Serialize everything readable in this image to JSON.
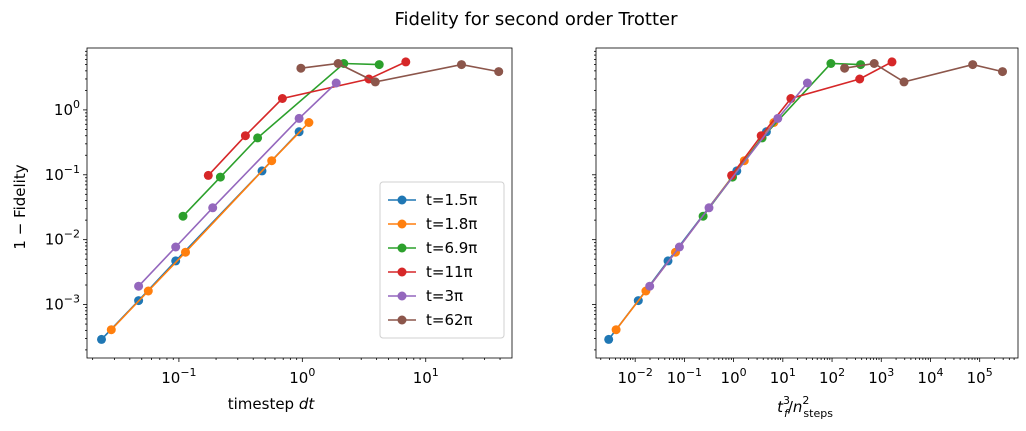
{
  "chart_data": {
    "title": "Fidelity for second order Trotter",
    "colors": [
      "#1f77b4",
      "#ff7f0e",
      "#2ca02c",
      "#d62728",
      "#9467bd",
      "#8c564b"
    ],
    "legend": [
      "t=1.5π",
      "t=1.8π",
      "t=6.9π",
      "t=11π",
      "t=3π",
      "t=62π"
    ],
    "shared_ylabel": "1 − Fidelity",
    "ylim": [
      0.00015,
      9
    ],
    "y_ticks": [
      {
        "value": 0.001,
        "label": "10",
        "exp": "−3"
      },
      {
        "value": 0.01,
        "label": "10",
        "exp": "−2"
      },
      {
        "value": 0.1,
        "label": "10",
        "exp": "−1"
      },
      {
        "value": 1,
        "label": "10",
        "exp": "0"
      }
    ],
    "panels": [
      {
        "type": "line",
        "scale": "log-log",
        "xlabel_main": "timestep ",
        "xlabel_italic": "dt",
        "xlim": [
          0.018,
          50
        ],
        "x_ticks": [
          {
            "value": 0.1,
            "label": "10",
            "exp": "−1"
          },
          {
            "value": 1,
            "label": "10",
            "exp": "0"
          },
          {
            "value": 10,
            "label": "10",
            "exp": "1"
          }
        ],
        "legend_position": "lower-right",
        "series": [
          {
            "name": "t=1.5π",
            "x": [
              0.0236,
              0.0471,
              0.0942,
              0.471,
              0.942
            ],
            "y": [
              0.00029,
              0.00115,
              0.0047,
              0.115,
              0.46
            ]
          },
          {
            "name": "t=1.8π",
            "x": [
              0.0283,
              0.0565,
              0.113,
              0.565,
              1.13
            ],
            "y": [
              0.00041,
              0.00162,
              0.0064,
              0.165,
              0.64
            ]
          },
          {
            "name": "t=6.9π",
            "x": [
              0.108,
              0.217,
              0.434,
              2.17,
              4.2
            ],
            "y": [
              0.023,
              0.092,
              0.37,
              5.2,
              5.0
            ]
          },
          {
            "name": "t=11π",
            "x": [
              0.173,
              0.346,
              0.69,
              3.46,
              6.9
            ],
            "y": [
              0.098,
              0.4,
              1.5,
              3.0,
              5.5
            ]
          },
          {
            "name": "t=3π",
            "x": [
              0.0471,
              0.0942,
              0.188,
              0.942,
              1.88
            ],
            "y": [
              0.00192,
              0.0077,
              0.031,
              0.74,
              2.6
            ]
          },
          {
            "name": "t=62π",
            "x": [
              0.974,
              1.95,
              3.9,
              19.5,
              39
            ],
            "y": [
              4.4,
              5.2,
              2.7,
              5.0,
              3.9
            ]
          }
        ]
      },
      {
        "type": "line",
        "scale": "log-log",
        "xlabel_main": "t",
        "xlabel_italic": "",
        "xlim": [
          0.0016,
          600000
        ],
        "x_ticks": [
          {
            "value": 0.01,
            "label": "10",
            "exp": "−2"
          },
          {
            "value": 0.1,
            "label": "10",
            "exp": "−1"
          },
          {
            "value": 1,
            "label": "10",
            "exp": "0"
          },
          {
            "value": 10,
            "label": "10",
            "exp": "1"
          },
          {
            "value": 100,
            "label": "10",
            "exp": "2"
          },
          {
            "value": 1000,
            "label": "10",
            "exp": "3"
          },
          {
            "value": 10000,
            "label": "10",
            "exp": "4"
          },
          {
            "value": 100000,
            "label": "10",
            "exp": "5"
          }
        ],
        "series": [
          {
            "name": "t=1.5π",
            "x": [
              0.0029,
              0.0116,
              0.0464,
              1.16,
              4.64
            ],
            "y": [
              0.00029,
              0.00115,
              0.0047,
              0.115,
              0.46
            ]
          },
          {
            "name": "t=1.8π",
            "x": [
              0.0041,
              0.0165,
              0.066,
              1.65,
              6.6
            ],
            "y": [
              0.00041,
              0.00162,
              0.0064,
              0.165,
              0.64
            ]
          },
          {
            "name": "t=6.9π",
            "x": [
              0.24,
              0.95,
              3.8,
              95,
              380
            ],
            "y": [
              0.023,
              0.092,
              0.37,
              5.2,
              5.0
            ]
          },
          {
            "name": "t=11π",
            "x": [
              0.91,
              3.64,
              14.6,
              364,
              1650
            ],
            "y": [
              0.098,
              0.4,
              1.5,
              3.0,
              5.5
            ]
          },
          {
            "name": "t=3π",
            "x": [
              0.0197,
              0.079,
              0.316,
              7.9,
              31.6
            ],
            "y": [
              0.00192,
              0.0077,
              0.031,
              0.74,
              2.6
            ]
          },
          {
            "name": "t=62π",
            "x": [
              180,
              720,
              2900,
              72000,
              290000
            ],
            "y": [
              4.4,
              5.2,
              2.7,
              5.0,
              3.9
            ]
          }
        ]
      }
    ]
  }
}
